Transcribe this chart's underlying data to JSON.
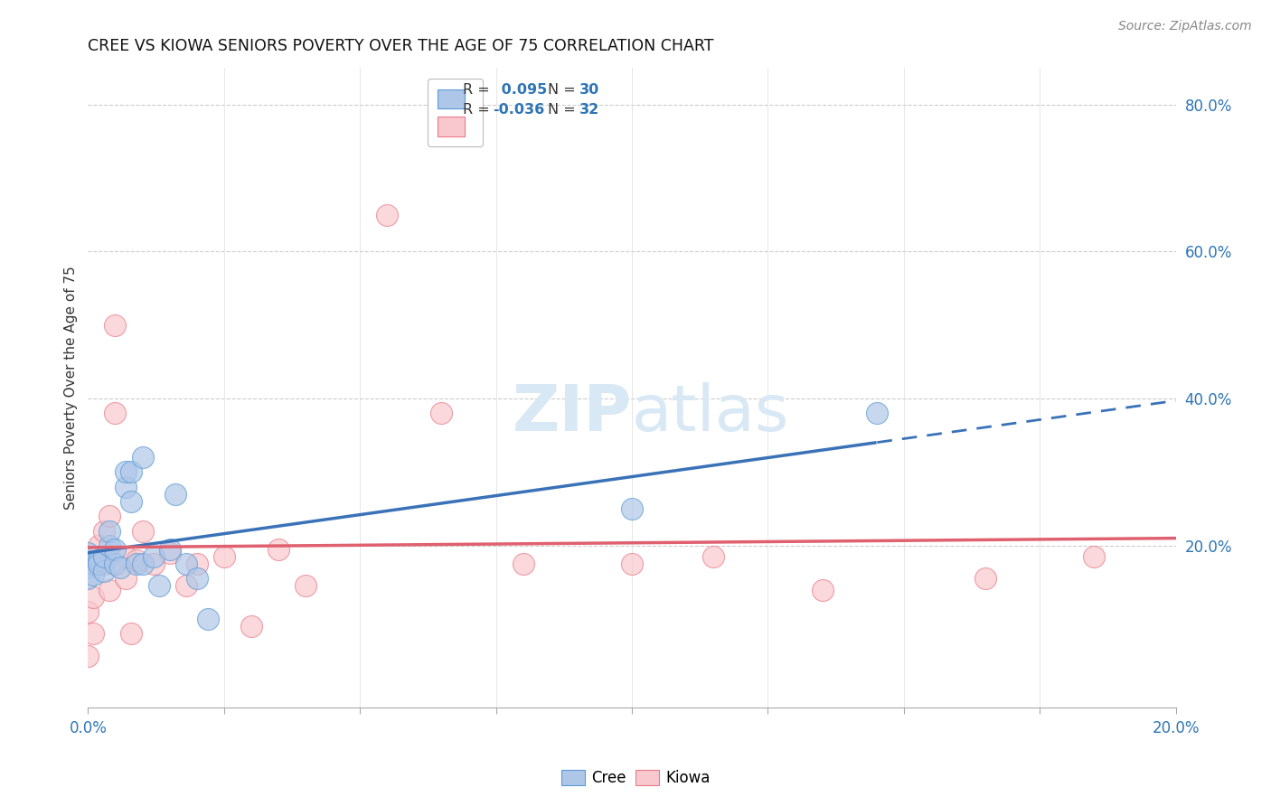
{
  "title": "CREE VS KIOWA SENIORS POVERTY OVER THE AGE OF 75 CORRELATION CHART",
  "source": "Source: ZipAtlas.com",
  "ylabel": "Seniors Poverty Over the Age of 75",
  "xlim": [
    0.0,
    0.2
  ],
  "ylim": [
    -0.02,
    0.85
  ],
  "xticks": [
    0.0,
    0.025,
    0.05,
    0.075,
    0.1,
    0.125,
    0.15,
    0.175,
    0.2
  ],
  "ytick_vals_right": [
    0.2,
    0.4,
    0.6,
    0.8
  ],
  "cree_fill_color": "#aec6e8",
  "kiowa_fill_color": "#f8c8ce",
  "cree_edge_color": "#5b9bd5",
  "kiowa_edge_color": "#e87b87",
  "cree_line_color": "#3a72b8",
  "kiowa_line_color": "#e06070",
  "legend_R_color": "#2e75b6",
  "legend_N_color": "#2e75b6",
  "cree_R": 0.095,
  "cree_N": 30,
  "kiowa_R": -0.036,
  "kiowa_N": 32,
  "cree_x": [
    0.0,
    0.0,
    0.0,
    0.001,
    0.001,
    0.002,
    0.002,
    0.003,
    0.003,
    0.004,
    0.004,
    0.005,
    0.005,
    0.006,
    0.007,
    0.007,
    0.008,
    0.008,
    0.009,
    0.01,
    0.01,
    0.012,
    0.013,
    0.015,
    0.016,
    0.018,
    0.02,
    0.022,
    0.1,
    0.145
  ],
  "cree_y": [
    0.17,
    0.19,
    0.155,
    0.175,
    0.16,
    0.18,
    0.175,
    0.165,
    0.185,
    0.2,
    0.22,
    0.175,
    0.195,
    0.17,
    0.28,
    0.3,
    0.26,
    0.3,
    0.175,
    0.32,
    0.175,
    0.185,
    0.145,
    0.195,
    0.27,
    0.175,
    0.155,
    0.1,
    0.25,
    0.38
  ],
  "kiowa_x": [
    0.0,
    0.0,
    0.001,
    0.001,
    0.002,
    0.003,
    0.003,
    0.004,
    0.004,
    0.005,
    0.005,
    0.007,
    0.007,
    0.008,
    0.009,
    0.01,
    0.012,
    0.015,
    0.018,
    0.02,
    0.025,
    0.03,
    0.035,
    0.04,
    0.055,
    0.065,
    0.08,
    0.1,
    0.115,
    0.135,
    0.165,
    0.185
  ],
  "kiowa_y": [
    0.05,
    0.11,
    0.13,
    0.08,
    0.2,
    0.175,
    0.22,
    0.14,
    0.24,
    0.38,
    0.5,
    0.185,
    0.155,
    0.08,
    0.18,
    0.22,
    0.175,
    0.19,
    0.145,
    0.175,
    0.185,
    0.09,
    0.195,
    0.145,
    0.65,
    0.38,
    0.175,
    0.175,
    0.185,
    0.14,
    0.155,
    0.185
  ],
  "background_color": "#ffffff",
  "grid_color": "#cccccc",
  "watermark_color": "#d8e8f4",
  "scatter_size": 300,
  "scatter_alpha": 0.7
}
